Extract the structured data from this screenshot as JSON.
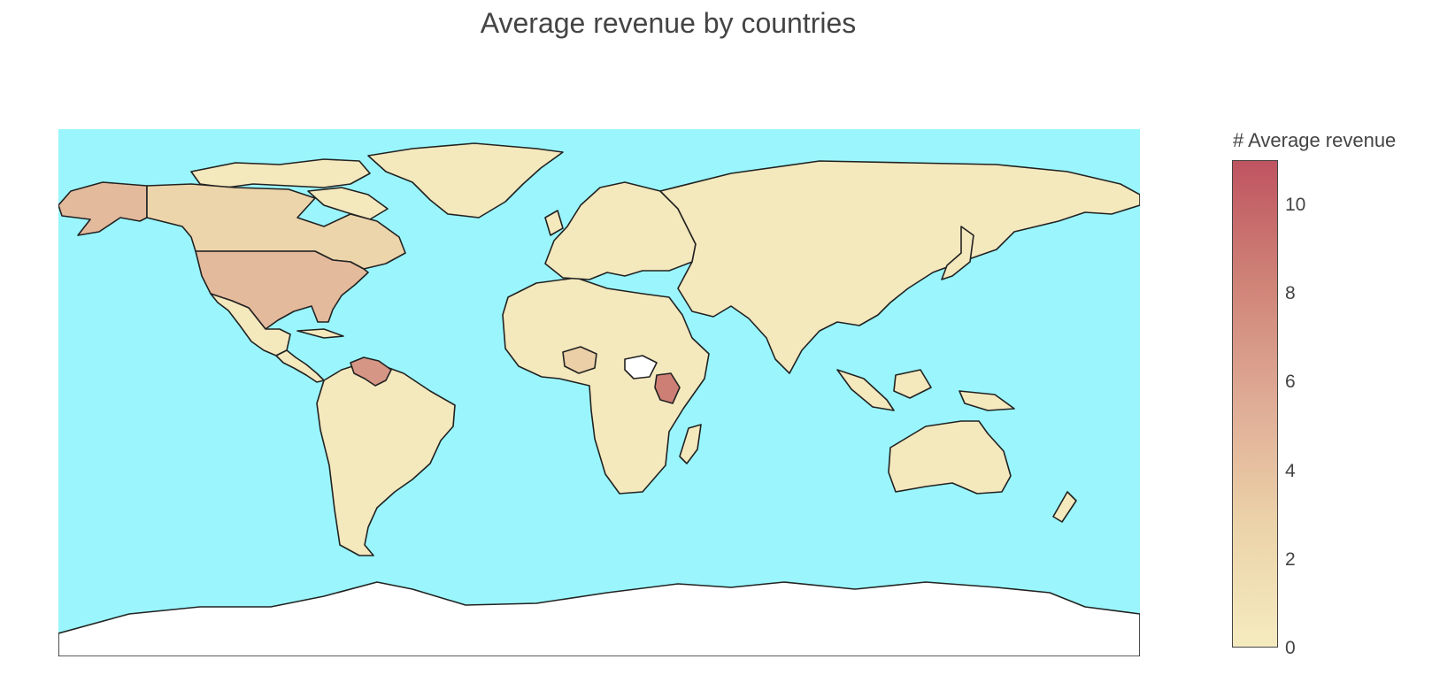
{
  "title": "Average revenue by countries",
  "colorbar": {
    "title": "# Average revenue",
    "ticks": [
      "0",
      "2",
      "4",
      "6",
      "8",
      "10"
    ],
    "tick_values": [
      0,
      2,
      4,
      6,
      8,
      10
    ],
    "range": [
      0,
      11
    ],
    "colorscale": [
      "#f5ebbf",
      "#ecd3a9",
      "#dfac96",
      "#cf8377",
      "#bf5461"
    ]
  },
  "map": {
    "projection": "equirectangular",
    "ocean_color": "#9af6fc",
    "land_color": "#f5ebbf",
    "no_data_color": "#ffffff",
    "border_color": "#222222"
  },
  "chart_data": {
    "type": "choropleth",
    "title": "Average revenue by countries",
    "colorbar_title": "# Average revenue",
    "range": [
      0,
      11
    ],
    "regions": [
      {
        "name": "Kenya",
        "value": 8.5
      },
      {
        "name": "Venezuela",
        "value": 7
      },
      {
        "name": "United States",
        "value": 4.5
      },
      {
        "name": "Alaska (United States)",
        "value": 4.5
      },
      {
        "name": "Nigeria",
        "value": 3
      },
      {
        "name": "Canada",
        "value": 2.5
      },
      {
        "name": "South Sudan",
        "value": null
      },
      {
        "name": "Other countries",
        "value": 0.3
      }
    ]
  }
}
